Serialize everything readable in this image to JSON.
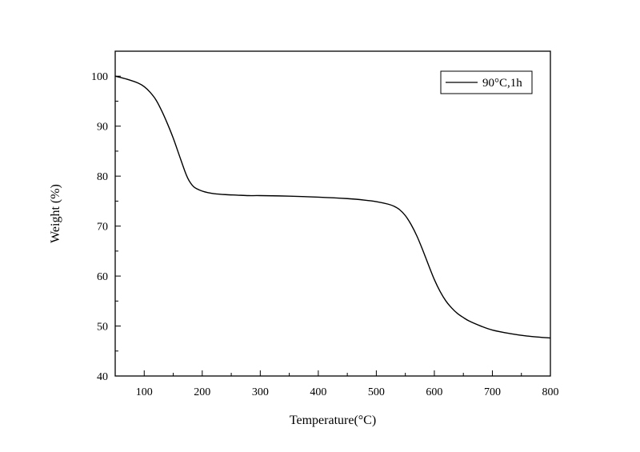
{
  "chart_data": {
    "type": "line",
    "xlabel": "Temperature(°C)",
    "ylabel": "Weight (%)",
    "xlim": [
      50,
      800
    ],
    "ylim": [
      40,
      105
    ],
    "xticks": [
      100,
      200,
      300,
      400,
      500,
      600,
      700,
      800
    ],
    "yticks": [
      40,
      50,
      60,
      70,
      80,
      90,
      100
    ],
    "legend_position": "top-right",
    "grid": false,
    "series": [
      {
        "name": "90°C,1h",
        "color": "#000000",
        "x": [
          50,
          70,
          90,
          100,
          110,
          120,
          130,
          140,
          150,
          160,
          170,
          175,
          180,
          185,
          190,
          200,
          210,
          220,
          240,
          260,
          280,
          300,
          350,
          400,
          450,
          480,
          500,
          520,
          530,
          540,
          550,
          560,
          570,
          580,
          590,
          600,
          610,
          620,
          630,
          640,
          650,
          660,
          680,
          700,
          730,
          760,
          800
        ],
        "y": [
          100.0,
          99.4,
          98.6,
          97.9,
          96.8,
          95.3,
          93.1,
          90.5,
          87.6,
          84.3,
          81.0,
          79.6,
          78.6,
          77.9,
          77.5,
          77.0,
          76.7,
          76.5,
          76.3,
          76.2,
          76.1,
          76.1,
          76.0,
          75.8,
          75.5,
          75.2,
          74.9,
          74.4,
          74.0,
          73.3,
          72.1,
          70.3,
          68.0,
          65.2,
          62.2,
          59.3,
          56.9,
          55.0,
          53.6,
          52.5,
          51.7,
          51.0,
          50.0,
          49.2,
          48.5,
          48.0,
          47.6
        ]
      }
    ]
  }
}
